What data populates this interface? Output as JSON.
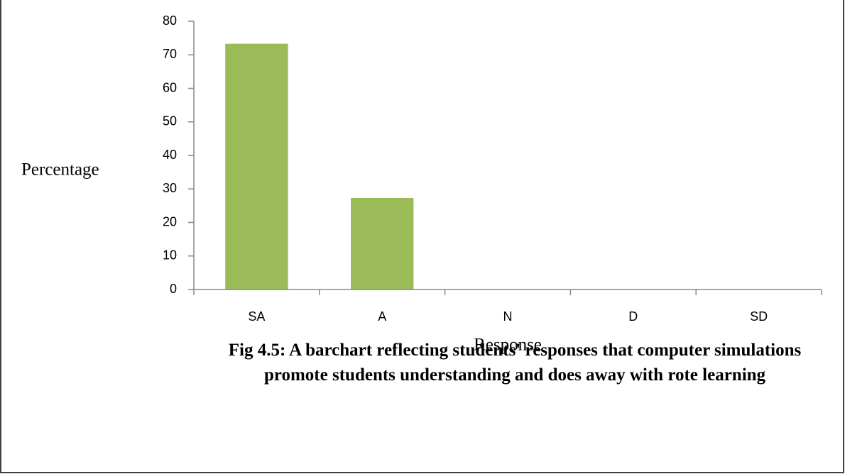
{
  "chart_data": {
    "type": "bar",
    "categories": [
      "SA",
      "A",
      "N",
      "D",
      "SD"
    ],
    "values": [
      73.3,
      27.3,
      0,
      0,
      0
    ],
    "color": "#9bbb59",
    "ylim": [
      0,
      80
    ],
    "yticks": [
      0,
      10,
      20,
      30,
      40,
      50,
      60,
      70,
      80
    ],
    "ylabel": "Percentage",
    "xlabel": "Response",
    "caption": "Fig 4.5: A barchart reflecting students' responses that computer simulations promote students understanding and does away with rote learning",
    "grid": false
  }
}
